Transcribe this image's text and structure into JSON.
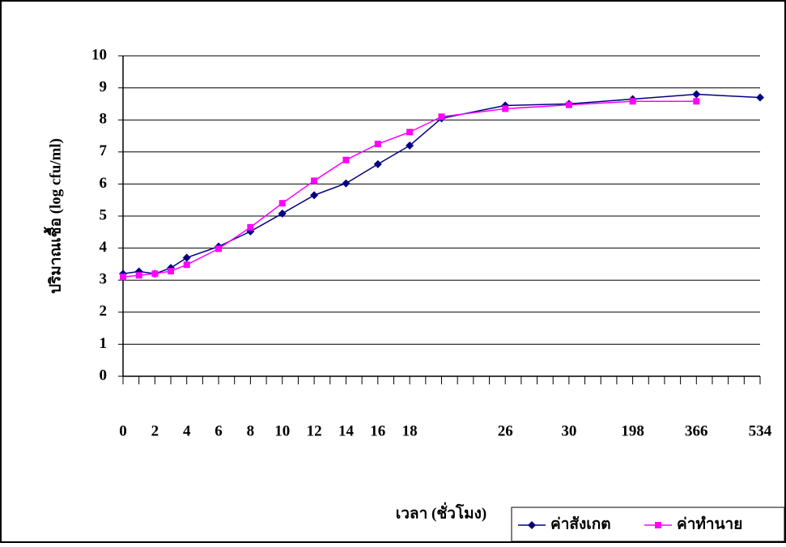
{
  "chart_data": {
    "type": "line",
    "x_label": "เวลา (ชั่วโมง)",
    "y_label": "ปริมาณเชื้อ (log cfu/ml)",
    "categories": [
      "0",
      null,
      "2",
      null,
      "4",
      null,
      "6",
      null,
      "8",
      null,
      "10",
      null,
      "12",
      null,
      "14",
      null,
      "16",
      null,
      "18",
      null,
      null,
      null,
      null,
      null,
      "26",
      null,
      null,
      null,
      "30",
      null,
      null,
      null,
      "198",
      null,
      null,
      null,
      "366",
      null,
      null,
      null,
      "534"
    ],
    "series": [
      {
        "name": "ค่าสังเกต",
        "color": "#000080",
        "marker": "diamond",
        "values": [
          3.2,
          3.27,
          3.2,
          3.38,
          3.7,
          null,
          4.05,
          null,
          4.52,
          null,
          5.08,
          null,
          5.65,
          null,
          6.02,
          null,
          6.62,
          null,
          7.2,
          null,
          8.05,
          null,
          null,
          null,
          8.45,
          null,
          null,
          null,
          8.5,
          null,
          null,
          null,
          8.65,
          null,
          null,
          null,
          8.8,
          null,
          null,
          null,
          8.7
        ]
      },
      {
        "name": "ค่าทำนาย",
        "color": "#ff00ff",
        "marker": "square",
        "values": [
          3.1,
          3.15,
          3.2,
          3.28,
          3.48,
          null,
          3.98,
          null,
          4.65,
          null,
          5.4,
          null,
          6.1,
          null,
          6.75,
          null,
          7.25,
          null,
          7.62,
          null,
          8.1,
          null,
          null,
          null,
          8.35,
          null,
          null,
          null,
          8.47,
          null,
          null,
          null,
          8.58,
          null,
          null,
          null,
          8.58,
          null,
          null,
          null,
          null
        ]
      }
    ],
    "ylim": [
      0,
      10
    ],
    "yticks": [
      0,
      1,
      2,
      3,
      4,
      5,
      6,
      7,
      8,
      9,
      10
    ],
    "grid": true,
    "legend": "bottom-right"
  }
}
